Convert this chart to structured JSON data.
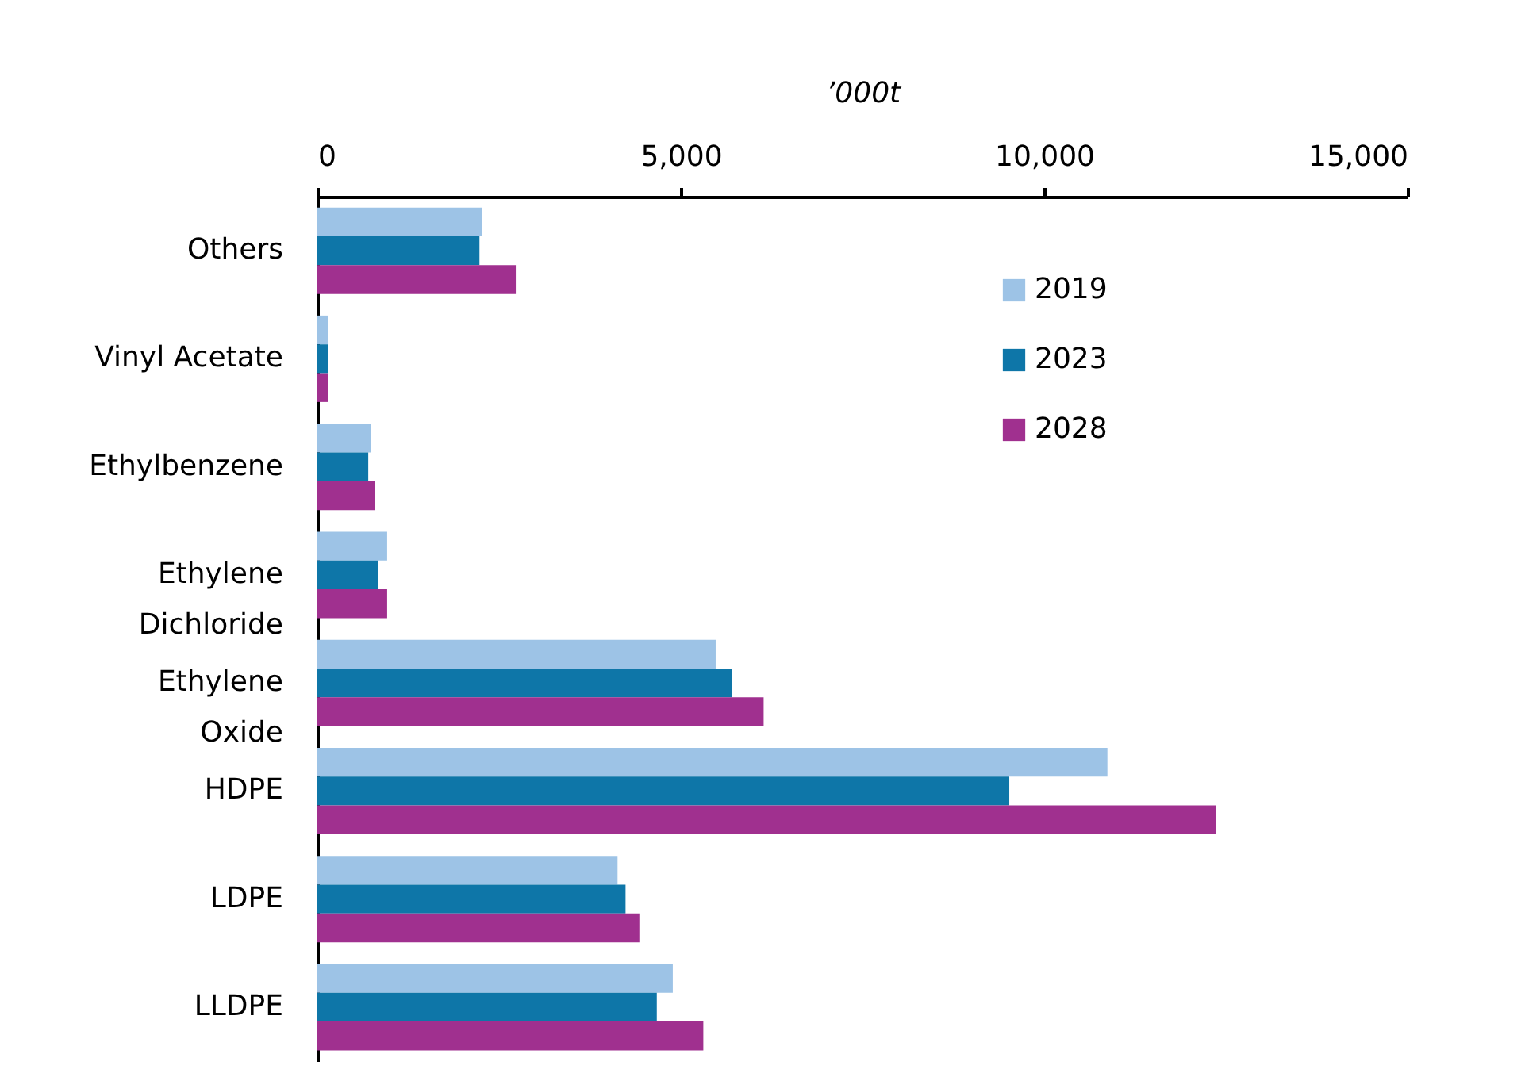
{
  "chart_data": {
    "type": "bar",
    "orientation": "horizontal",
    "xlabel": "’000t",
    "categories": [
      "Others",
      "Vinyl Acetate",
      "Ethylbenzene",
      "Ethylene\nDichloride",
      "Ethylene\nOxide",
      "HDPE",
      "LDPE",
      "LLDPE"
    ],
    "series": [
      {
        "name": "2019",
        "color": "#9dc3e6",
        "values": [
          2270,
          150,
          740,
          960,
          5480,
          10870,
          4130,
          4890
        ]
      },
      {
        "name": "2023",
        "color": "#0e76a8",
        "values": [
          2230,
          150,
          700,
          830,
          5700,
          9520,
          4240,
          4670
        ]
      },
      {
        "name": "2028",
        "color": "#a0308f",
        "values": [
          2730,
          150,
          790,
          960,
          6140,
          12360,
          4430,
          5310
        ]
      }
    ],
    "xlim": [
      0,
      15000
    ],
    "xticks": [
      0,
      {
        "value": 5000,
        "label": "5,000"
      },
      {
        "value": 10000,
        "label": "10,000"
      },
      {
        "value": 15000,
        "label": "15,000"
      }
    ],
    "grid": false,
    "legend": "top right"
  }
}
